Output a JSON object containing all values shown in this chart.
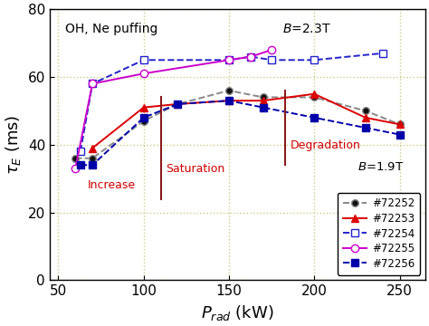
{
  "xlim": [
    45,
    265
  ],
  "ylim": [
    0,
    80
  ],
  "xticks": [
    50,
    100,
    150,
    200,
    250
  ],
  "yticks": [
    0,
    20,
    40,
    60,
    80
  ],
  "annotation_OH": "OH, Ne puffing",
  "annotation_B23": "$B$=2.3T",
  "annotation_B19": "$B$=1.9T",
  "annotation_increase": "Increase",
  "annotation_saturation": "Saturation",
  "annotation_degradation": "Degradation",
  "vline1_x": 110,
  "vline1_ymin": 24,
  "vline1_ymax": 54,
  "vline2_x": 183,
  "vline2_ymin": 34,
  "vline2_ymax": 56,
  "series": [
    {
      "label": "#72252",
      "color": "#888888",
      "linestyle": "--",
      "marker": "o",
      "markerfacecolor": "#111111",
      "markeredgecolor": "#888888",
      "markersize": 5.5,
      "linewidth": 1.4,
      "x": [
        60,
        70,
        100,
        120,
        150,
        170,
        200,
        230,
        250
      ],
      "y": [
        36,
        36,
        47,
        52,
        56,
        54,
        54,
        50,
        46
      ]
    },
    {
      "label": "#72253",
      "color": "#dd0000",
      "linestyle": "-",
      "marker": "^",
      "markerfacecolor": "#dd0000",
      "markeredgecolor": "#dd0000",
      "markersize": 6,
      "linewidth": 1.4,
      "x": [
        70,
        100,
        120,
        150,
        170,
        200,
        230,
        250
      ],
      "y": [
        39,
        51,
        52,
        53,
        53,
        55,
        48,
        46
      ]
    },
    {
      "label": "#72254",
      "color": "#2222cc",
      "linestyle": "--",
      "marker": "s",
      "markerfacecolor": "#ffffff",
      "markeredgecolor": "#2222cc",
      "markersize": 6,
      "linewidth": 1.4,
      "x": [
        63,
        70,
        100,
        150,
        163,
        175,
        200,
        240
      ],
      "y": [
        38,
        58,
        65,
        65,
        66,
        65,
        65,
        67
      ]
    },
    {
      "label": "#72255",
      "color": "#cc00cc",
      "linestyle": "-",
      "marker": "o",
      "markerfacecolor": "#ffffff",
      "markeredgecolor": "#cc00cc",
      "markersize": 6,
      "linewidth": 1.4,
      "x": [
        60,
        70,
        100,
        150,
        163,
        175
      ],
      "y": [
        33,
        58,
        61,
        65,
        66,
        68
      ]
    },
    {
      "label": "#72256",
      "color": "#0000aa",
      "linestyle": "--",
      "marker": "s",
      "markerfacecolor": "#0000aa",
      "markeredgecolor": "#0000aa",
      "markersize": 5.5,
      "linewidth": 1.4,
      "x": [
        63,
        70,
        100,
        120,
        150,
        170,
        200,
        230,
        250
      ],
      "y": [
        34,
        34,
        48,
        52,
        53,
        51,
        48,
        45,
        43
      ]
    }
  ],
  "background_color": "#ffffff",
  "grid_color": "#cccc88",
  "legend_fontsize": 8.5,
  "tick_fontsize": 11,
  "label_fontsize": 13
}
